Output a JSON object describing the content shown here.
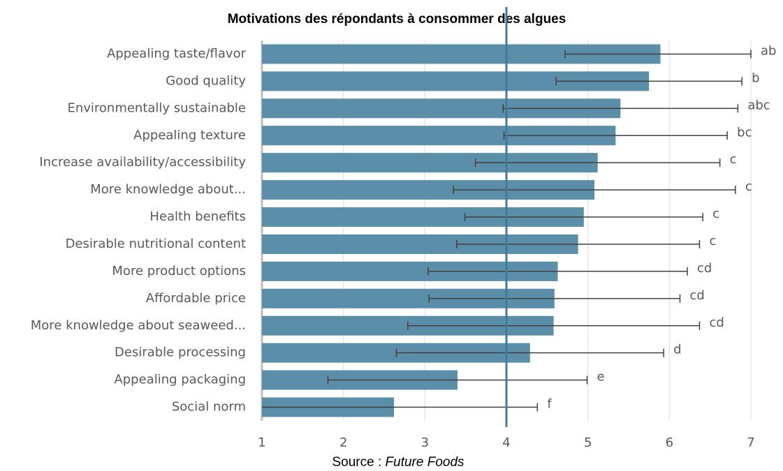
{
  "chart_data": {
    "type": "hbar",
    "title": "Motivations des répondants à consommer des algues",
    "categories": [
      "Appealing taste/flavor",
      "Good quality",
      "Environmentally sustainable",
      "Appealing texture",
      "Increase availability/accessibility",
      "More knowledge about...",
      "Health benefits",
      "Desirable nutritional content",
      "More product options",
      "Affordable price",
      "More knowledge about seaweed...",
      "Desirable processing",
      "Appealing packaging",
      "Social norm"
    ],
    "values": [
      5.89,
      5.75,
      5.4,
      5.34,
      5.12,
      5.08,
      4.95,
      4.88,
      4.63,
      4.59,
      4.58,
      4.29,
      3.4,
      2.62
    ],
    "errors": [
      1.17,
      1.14,
      1.44,
      1.37,
      1.5,
      1.73,
      1.46,
      1.49,
      1.59,
      1.54,
      1.79,
      1.64,
      1.59,
      1.76
    ],
    "group_labels": [
      "ab",
      "b",
      "abc",
      "bc",
      "c",
      "c",
      "c",
      "c",
      "cd",
      "cd",
      "cd",
      "d",
      "e",
      "f"
    ],
    "color": "#5b8ea8",
    "error_color": "#404040",
    "reference_line": 4,
    "reference_color": "#3f7c9c",
    "xlim": [
      1,
      7
    ],
    "xticks": [
      1,
      2,
      3,
      4,
      5,
      6,
      7
    ],
    "grid": true,
    "source": {
      "prefix": "Source :",
      "name": "Future Foods"
    }
  }
}
